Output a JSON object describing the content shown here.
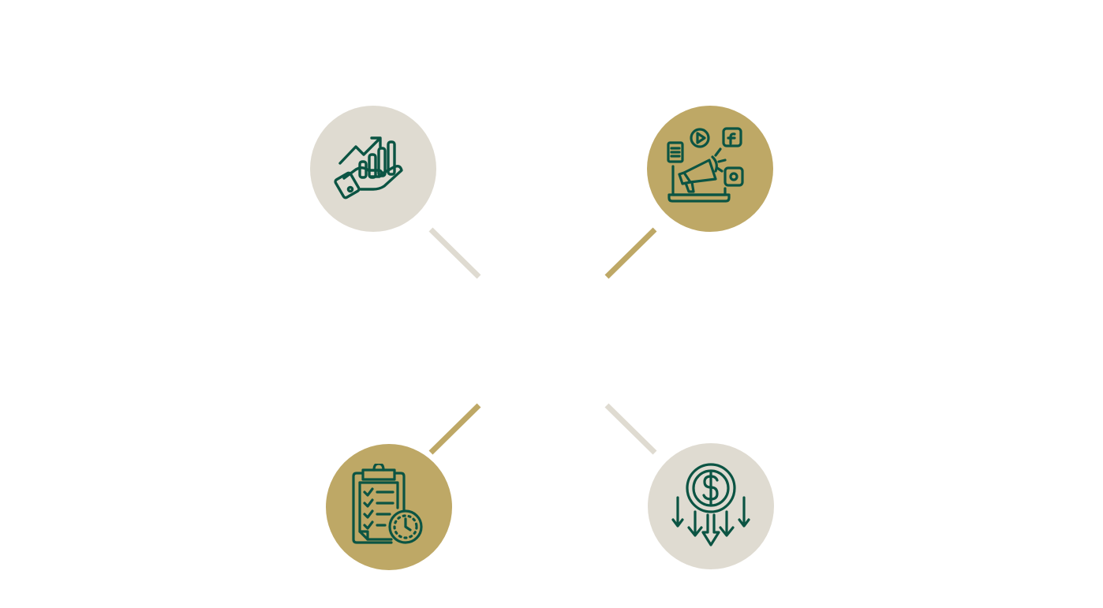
{
  "colors": {
    "background": "#ffffff",
    "light_circle": "#dfdbd1",
    "gold_circle": "#bea866",
    "icon_green": "#0b5443"
  },
  "nodes": [
    {
      "id": "tl",
      "icon": "growth-hand-chart-icon",
      "fill": "light"
    },
    {
      "id": "tr",
      "icon": "digital-marketing-megaphone-icon",
      "fill": "gold"
    },
    {
      "id": "bl",
      "icon": "checklist-clock-icon",
      "fill": "gold"
    },
    {
      "id": "br",
      "icon": "cost-reduction-dollar-icon",
      "fill": "light"
    }
  ],
  "connectors": [
    {
      "id": "tl",
      "fill": "light"
    },
    {
      "id": "tr",
      "fill": "gold"
    },
    {
      "id": "bl",
      "fill": "gold"
    },
    {
      "id": "br",
      "fill": "light"
    }
  ]
}
